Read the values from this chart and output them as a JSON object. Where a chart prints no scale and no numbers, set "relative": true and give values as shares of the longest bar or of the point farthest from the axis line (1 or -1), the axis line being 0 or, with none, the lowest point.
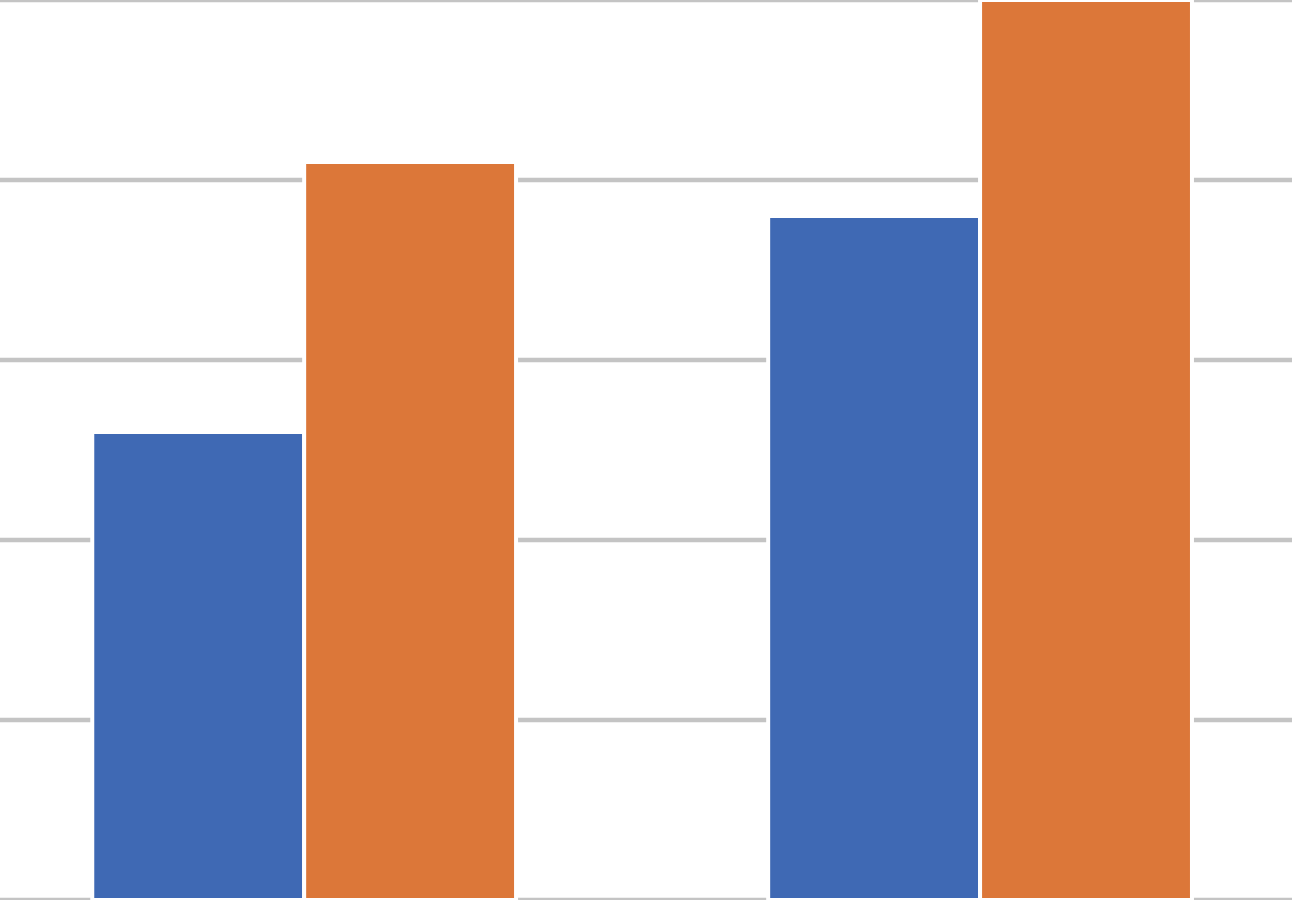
{
  "chart_data": {
    "type": "bar",
    "relative": true,
    "grid": "y",
    "categories": [
      null,
      null
    ],
    "series": [
      {
        "color": "#3f69b4",
        "values": [
          0.52,
          0.76
        ]
      },
      {
        "color": "#dc7739",
        "values": [
          0.82,
          1
        ]
      }
    ]
  }
}
